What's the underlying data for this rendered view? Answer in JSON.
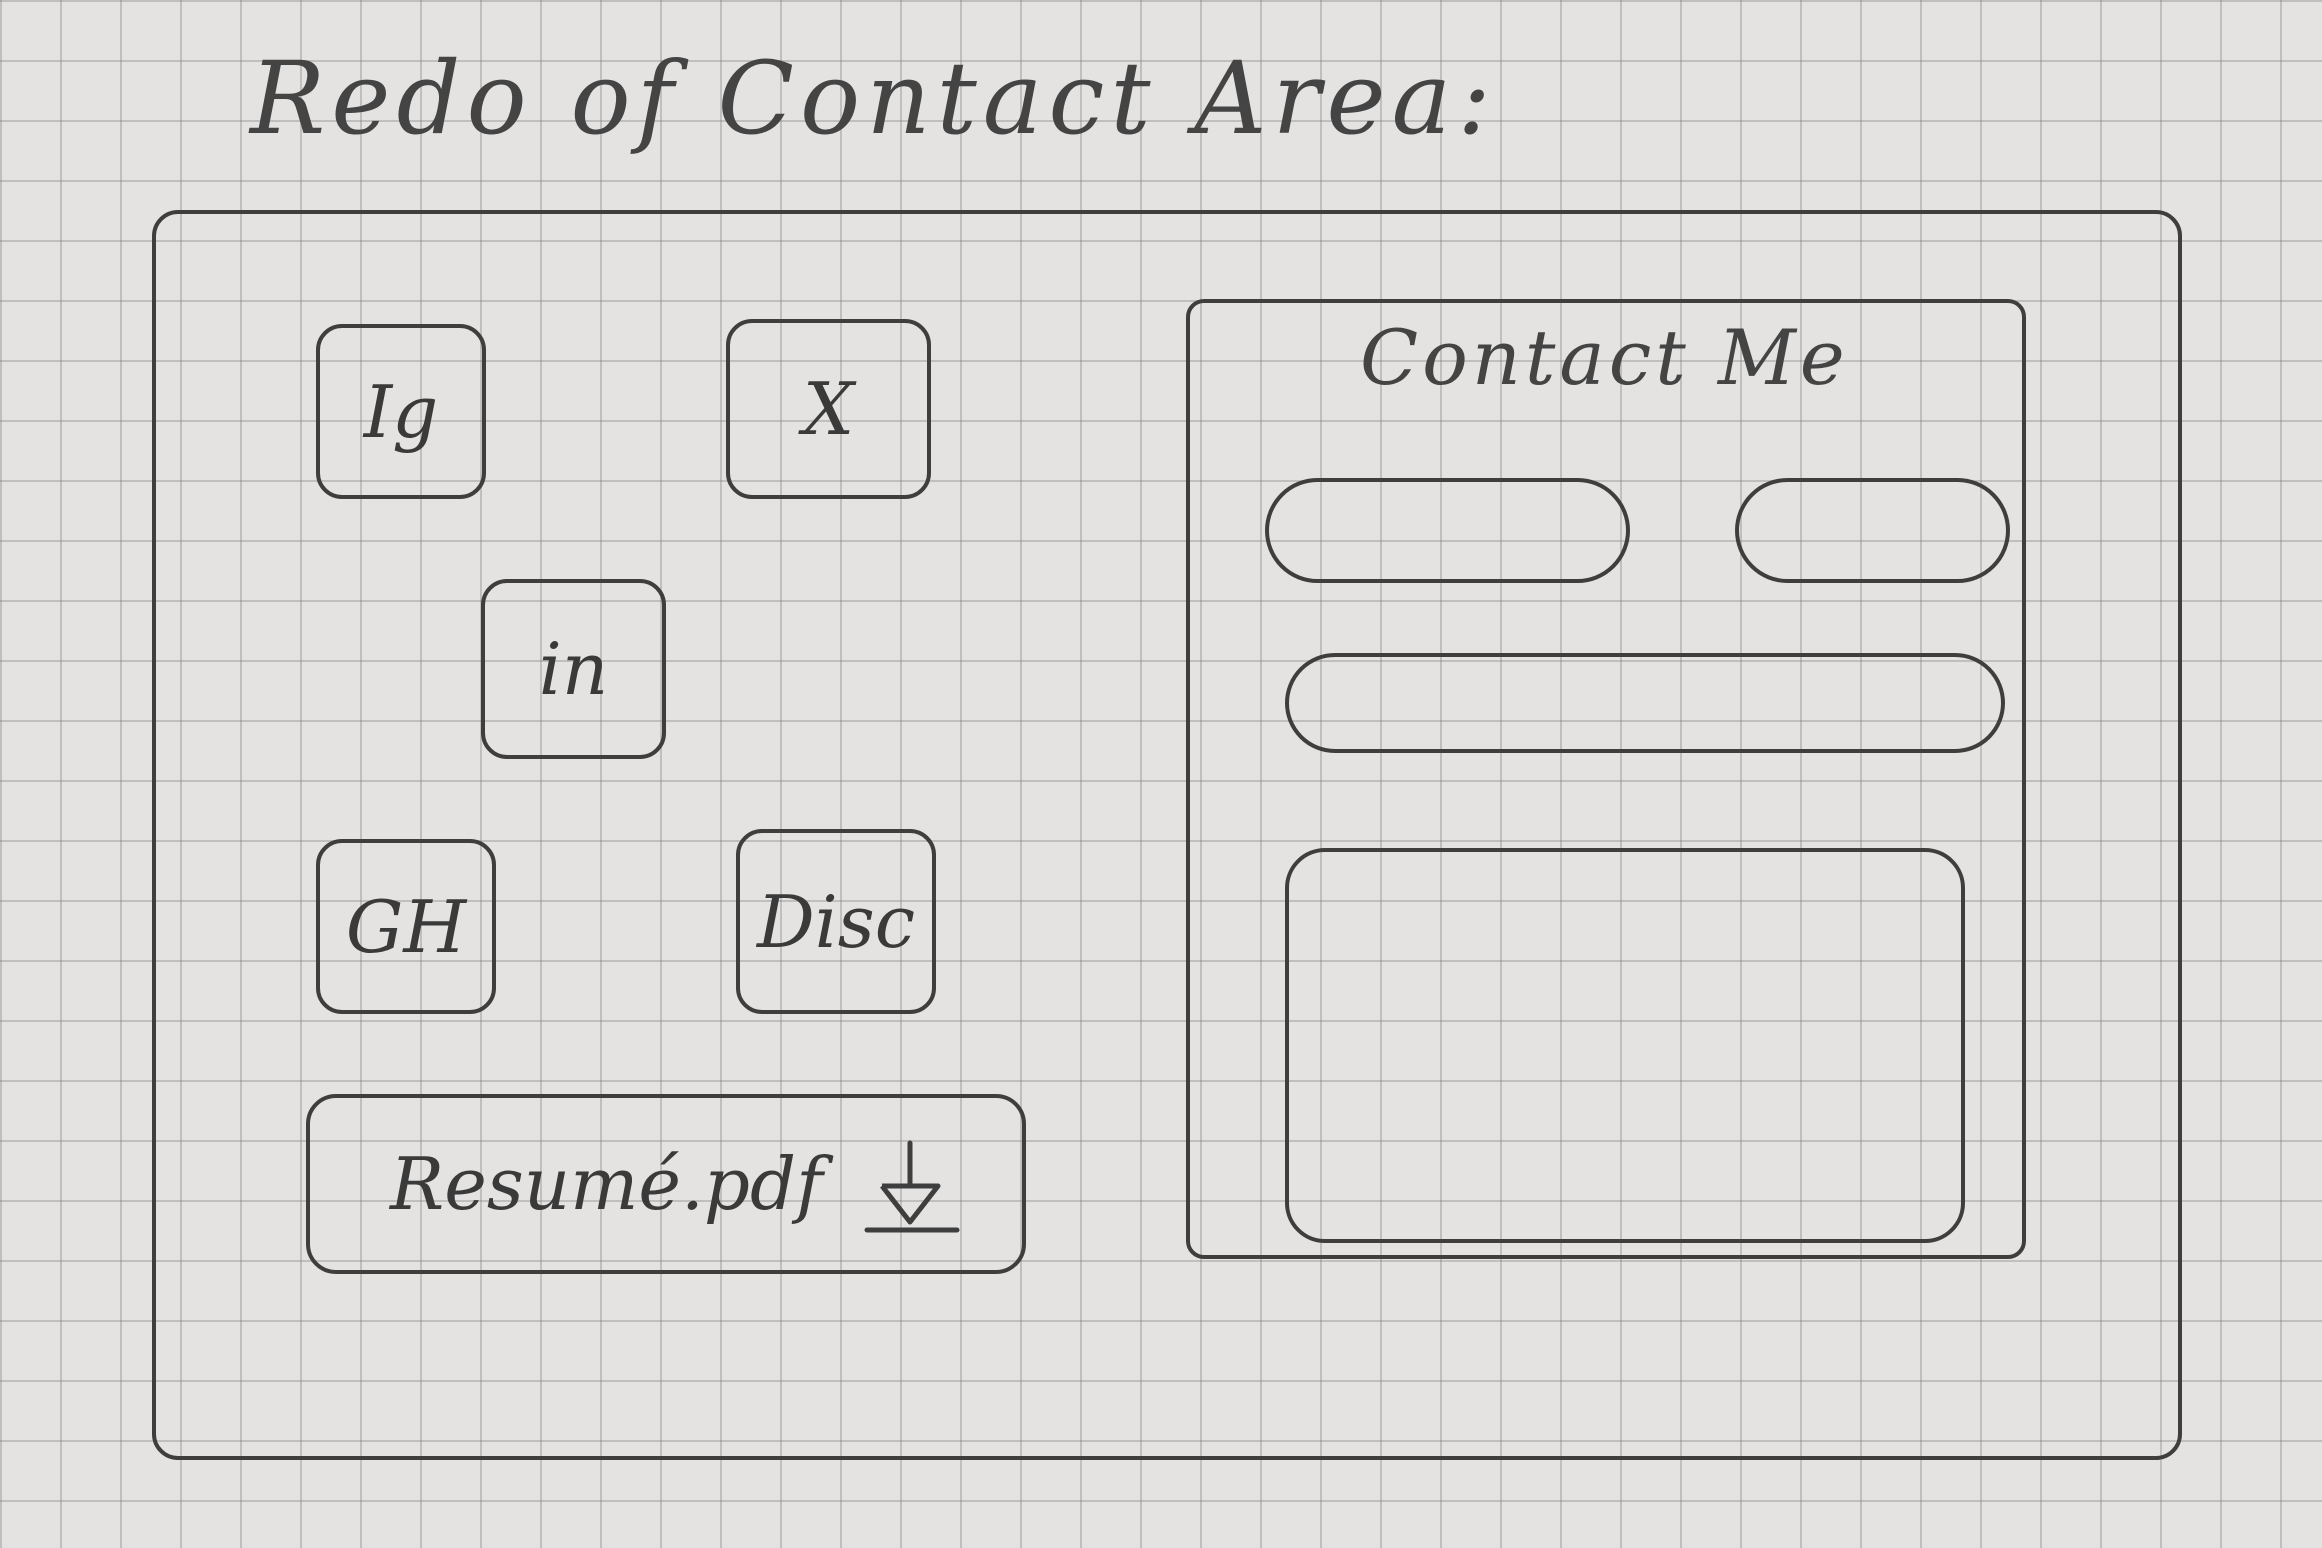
{
  "title": "Redo of Contact Area:",
  "socials": {
    "instagram_label": "Ig",
    "x_label": "X",
    "linkedin_label": "in",
    "github_label": "GH",
    "discord_label": "Disc"
  },
  "resume": {
    "label": "Resumé.pdf",
    "icon": "download-icon"
  },
  "contact": {
    "heading": "Contact Me",
    "name_placeholder": "",
    "email_placeholder": "",
    "subject_placeholder": "",
    "message_placeholder": ""
  }
}
